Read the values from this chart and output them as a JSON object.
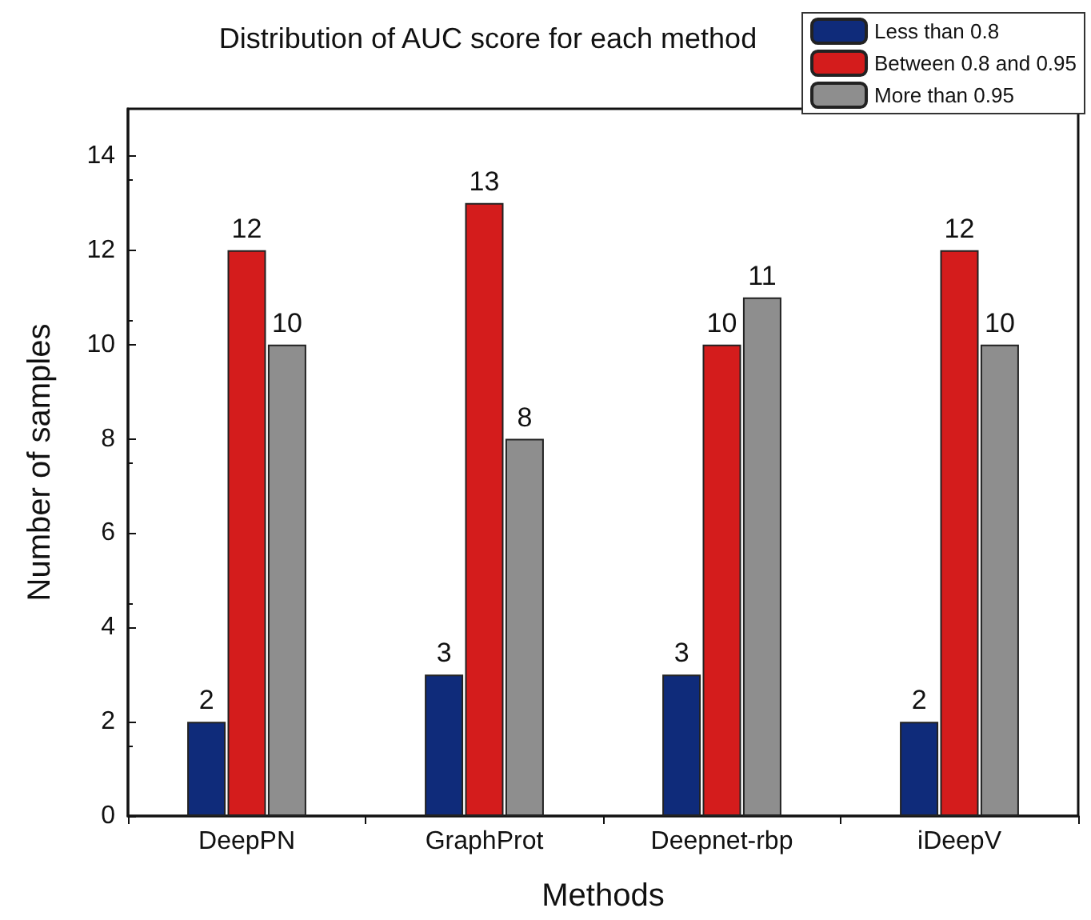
{
  "chart_data": {
    "type": "bar",
    "title": "Distribution of AUC score for each method",
    "xlabel": "Methods",
    "ylabel": "Number of samples",
    "categories": [
      "DeepPN",
      "GraphProt",
      "Deepnet-rbp",
      "iDeepV"
    ],
    "series": [
      {
        "name": "Less than 0.8",
        "color": "#0f2b7a",
        "values": [
          2,
          3,
          3,
          2
        ]
      },
      {
        "name": "Between 0.8 and 0.95",
        "color": "#d41c1c",
        "values": [
          12,
          13,
          10,
          12
        ]
      },
      {
        "name": "More than 0.95",
        "color": "#8e8e8e",
        "values": [
          10,
          8,
          11,
          10
        ]
      }
    ],
    "ylim": [
      0,
      15
    ],
    "yticks": [
      0,
      2,
      4,
      6,
      8,
      10,
      12,
      14
    ],
    "data_labels": true,
    "legend": "top right",
    "grid": false
  }
}
